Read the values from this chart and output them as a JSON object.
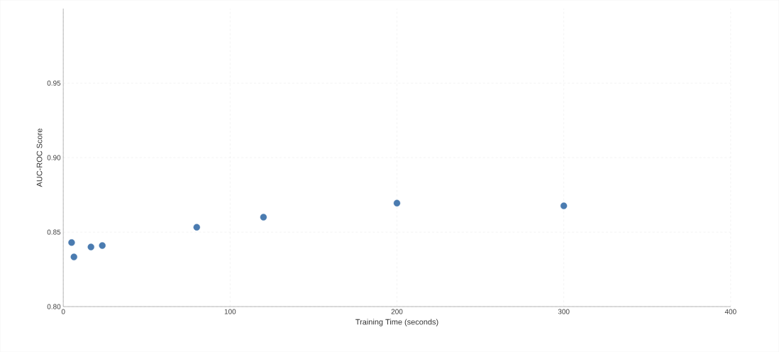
{
  "chart_data": {
    "type": "scatter",
    "xlabel": "Training Time (seconds)",
    "ylabel": "AUC-ROC Score",
    "x": [
      5,
      6.4,
      16.6,
      23.4,
      80,
      120,
      200,
      300
    ],
    "values": [
      0.843,
      0.8333,
      0.84,
      0.841,
      0.8533,
      0.86,
      0.8695,
      0.8676
    ],
    "color": "#4a7bb0",
    "marker": "circle",
    "grid": true,
    "xlim": [
      0,
      400
    ],
    "xticks": [
      0,
      100,
      200,
      300,
      400
    ],
    "ylim": [
      0.8,
      1.0
    ],
    "yticks": [
      {
        "value": 0.8,
        "label": "0.80"
      },
      {
        "value": 0.85,
        "label": "0.85"
      },
      {
        "value": 0.9,
        "label": "0.90"
      },
      {
        "value": 0.95,
        "label": "0.95"
      }
    ]
  }
}
